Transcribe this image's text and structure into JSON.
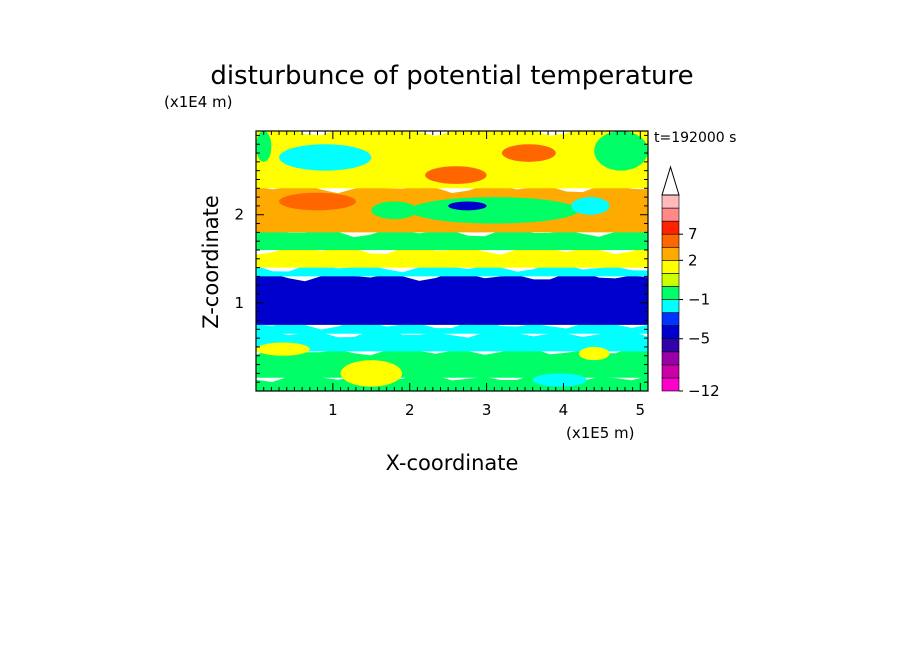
{
  "chart_data": {
    "type": "heatmap",
    "title": "disturbunce of potential temperature",
    "xlabel": "X-coordinate",
    "ylabel": "Z-coordinate",
    "x_unit": "(x1E5 m)",
    "y_unit": "(x1E4 m)",
    "time_label": "t=192000 s",
    "xlim": [
      0,
      5.1
    ],
    "ylim": [
      0,
      2.95
    ],
    "x_ticks": [
      "1",
      "2",
      "3",
      "4",
      "5"
    ],
    "x_tick_values": [
      1,
      2,
      3,
      4,
      5
    ],
    "y_ticks": [
      "1",
      "2"
    ],
    "y_tick_values": [
      1,
      2
    ],
    "colorbar": {
      "levels_bottom_to_top": [
        {
          "color": "#ff00cc"
        },
        {
          "color": "#cc00aa"
        },
        {
          "color": "#9900aa"
        },
        {
          "color": "#3300aa"
        },
        {
          "color": "#0000cc"
        },
        {
          "color": "#0033ff"
        },
        {
          "color": "#00ffff"
        },
        {
          "color": "#00ff66"
        },
        {
          "color": "#ccff00"
        },
        {
          "color": "#ffff00"
        },
        {
          "color": "#ffaa00"
        },
        {
          "color": "#ff6600"
        },
        {
          "color": "#ff2200"
        },
        {
          "color": "#ff8888"
        },
        {
          "color": "#ffbbbb"
        }
      ],
      "labels": [
        {
          "text": "7",
          "level_index": 12
        },
        {
          "text": "2",
          "level_index": 10
        },
        {
          "text": "−1",
          "level_index": 7
        },
        {
          "text": "−5",
          "level_index": 4
        },
        {
          "text": "−12",
          "level_index": 0
        }
      ],
      "extend": "max"
    },
    "bands_bottom_to_top": [
      {
        "z0": 0.0,
        "z1": 0.15,
        "value": -0.5
      },
      {
        "z0": 0.15,
        "z1": 0.45,
        "value": 0.0
      },
      {
        "z0": 0.45,
        "z1": 0.65,
        "value": -1.2
      },
      {
        "z0": 0.65,
        "z1": 0.75,
        "value": -2.5
      },
      {
        "z0": 0.75,
        "z1": 1.3,
        "value": -4.5
      },
      {
        "z0": 1.3,
        "z1": 1.4,
        "value": -1.5
      },
      {
        "z0": 1.4,
        "z1": 1.6,
        "value": 0.5
      },
      {
        "z0": 1.6,
        "z1": 1.8,
        "value": 0.0
      },
      {
        "z0": 1.8,
        "z1": 2.3,
        "value": 2.0
      },
      {
        "z0": 2.3,
        "z1": 2.95,
        "value": 1.0
      }
    ],
    "features": [
      {
        "x0": 0.4,
        "x1": 1.4,
        "z0": 2.55,
        "z1": 2.75,
        "value": -4.0
      },
      {
        "x0": 0.3,
        "x1": 1.5,
        "z0": 2.5,
        "z1": 2.8,
        "value": -1.5
      },
      {
        "x0": 0.3,
        "x1": 1.3,
        "z0": 2.05,
        "z1": 2.25,
        "value": 4.0
      },
      {
        "x0": 2.2,
        "x1": 3.0,
        "z0": 2.35,
        "z1": 2.55,
        "value": 4.0
      },
      {
        "x0": 3.2,
        "x1": 3.9,
        "z0": 2.6,
        "z1": 2.8,
        "value": 4.0
      },
      {
        "x0": 2.0,
        "x1": 4.2,
        "z0": 1.9,
        "z1": 2.2,
        "value": -0.8
      },
      {
        "x0": 2.5,
        "x1": 3.0,
        "z0": 2.05,
        "z1": 2.15,
        "value": -4.5
      },
      {
        "x0": 4.1,
        "x1": 4.6,
        "z0": 2.0,
        "z1": 2.2,
        "value": -1.5
      },
      {
        "x0": 4.4,
        "x1": 5.1,
        "z0": 2.5,
        "z1": 2.95,
        "value": 0.0
      },
      {
        "x0": 0.0,
        "x1": 0.2,
        "z0": 2.6,
        "z1": 2.95,
        "value": 0.0
      },
      {
        "x0": 1.5,
        "x1": 2.1,
        "z0": 1.95,
        "z1": 2.15,
        "value": 0.0
      },
      {
        "x0": 0.0,
        "x1": 0.7,
        "z0": 0.4,
        "z1": 0.55,
        "value": 1.0
      },
      {
        "x0": 1.1,
        "x1": 1.9,
        "z0": 0.05,
        "z1": 0.35,
        "value": 1.0
      },
      {
        "x0": 4.2,
        "x1": 4.6,
        "z0": 0.35,
        "z1": 0.5,
        "value": 1.0
      },
      {
        "x0": 3.6,
        "x1": 4.3,
        "z0": 0.05,
        "z1": 0.2,
        "value": -1.2
      }
    ]
  }
}
